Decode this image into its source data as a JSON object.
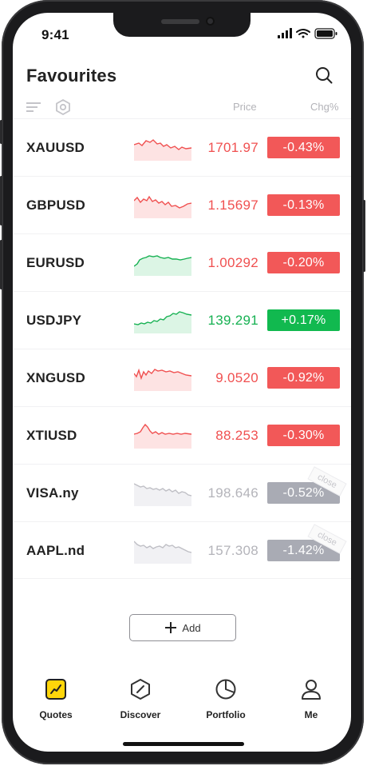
{
  "status": {
    "time": "9:41"
  },
  "header": {
    "title": "Favourites"
  },
  "columns": {
    "price": "Price",
    "change": "Chg%"
  },
  "quotes": [
    {
      "symbol": "XAUUSD",
      "price": "1701.97",
      "change": "-0.43%",
      "trend": "down",
      "state": "red"
    },
    {
      "symbol": "GBPUSD",
      "price": "1.15697",
      "change": "-0.13%",
      "trend": "down",
      "state": "red"
    },
    {
      "symbol": "EURUSD",
      "price": "1.00292",
      "change": "-0.20%",
      "trend": "up",
      "state": "red"
    },
    {
      "symbol": "USDJPY",
      "price": "139.291",
      "change": "+0.17%",
      "trend": "up",
      "state": "green"
    },
    {
      "symbol": "XNGUSD",
      "price": "9.0520",
      "change": "-0.92%",
      "trend": "down",
      "state": "red"
    },
    {
      "symbol": "XTIUSD",
      "price": "88.253",
      "change": "-0.30%",
      "trend": "down",
      "state": "red"
    },
    {
      "symbol": "VISA.ny",
      "price": "198.646",
      "change": "-0.52%",
      "trend": "down",
      "state": "closed",
      "closed_label": "close"
    },
    {
      "symbol": "AAPL.nd",
      "price": "157.308",
      "change": "-1.42%",
      "trend": "down",
      "state": "closed",
      "closed_label": "close"
    }
  ],
  "add_button": {
    "label": "Add"
  },
  "nav": [
    {
      "label": "Quotes",
      "icon": "quotes-icon",
      "active": true
    },
    {
      "label": "Discover",
      "icon": "compass-icon"
    },
    {
      "label": "Portfolio",
      "icon": "pie-chart-icon"
    },
    {
      "label": "Me",
      "icon": "user-icon"
    }
  ],
  "colors": {
    "red": "#f25858",
    "green": "#11b94f",
    "closed": "#a9abb4",
    "accent": "#ffd60a"
  }
}
